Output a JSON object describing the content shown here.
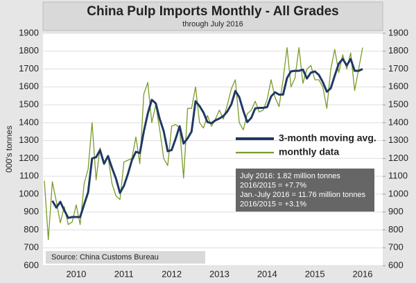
{
  "chart_data": {
    "type": "line",
    "title": "China Pulp Imports Monthly - All Grades",
    "subtitle": "through July 2016",
    "y_label": "000's tonnes",
    "source": "Source: China Customs Bureau",
    "annotation": [
      "July 2016: 1.82 million tonnes",
      "2016/2015 = +7.7%",
      "Jan.-July 2016 = 11.76 million tonnes",
      "2016/2015 = +3.1%"
    ],
    "categories": [
      null,
      null,
      null,
      null,
      null,
      null,
      null,
      null,
      "2010",
      null,
      null,
      null,
      null,
      null,
      null,
      null,
      null,
      null,
      null,
      null,
      "2011",
      null,
      null,
      null,
      null,
      null,
      null,
      null,
      null,
      null,
      null,
      null,
      "2012",
      null,
      null,
      null,
      null,
      null,
      null,
      null,
      null,
      null,
      null,
      null,
      "2013",
      null,
      null,
      null,
      null,
      null,
      null,
      null,
      null,
      null,
      null,
      null,
      "2014",
      null,
      null,
      null,
      null,
      null,
      null,
      null,
      null,
      null,
      null,
      null,
      "2015",
      null,
      null,
      null,
      null,
      null,
      null,
      null,
      null,
      null,
      null,
      null,
      "2016"
    ],
    "series": [
      {
        "name": "3-month moving avg.",
        "color": "#1f3864",
        "width": 3,
        "values": [
          null,
          null,
          963,
          925,
          957,
          910,
          867,
          872,
          872,
          872,
          943,
          1010,
          1200,
          1207,
          1247,
          1170,
          1213,
          1147,
          1087,
          1007,
          1047,
          1113,
          1190,
          1237,
          1230,
          1350,
          1452,
          1528,
          1508,
          1420,
          1353,
          1240,
          1247,
          1310,
          1380,
          1283,
          1313,
          1350,
          1520,
          1493,
          1457,
          1403,
          1397,
          1413,
          1423,
          1437,
          1463,
          1503,
          1577,
          1543,
          1467,
          1403,
          1427,
          1480,
          1483,
          1483,
          1487,
          1547,
          1570,
          1557,
          1557,
          1650,
          1687,
          1690,
          1690,
          1697,
          1647,
          1680,
          1687,
          1667,
          1627,
          1573,
          1593,
          1663,
          1730,
          1757,
          1720,
          1757,
          1690,
          1690,
          1700
        ]
      },
      {
        "name": "monthly data",
        "color": "#7a9a2a",
        "width": 1.3,
        "values": [
          1075,
          745,
          1070,
          960,
          840,
          930,
          830,
          845,
          940,
          830,
          1060,
          1140,
          1400,
          1080,
          1260,
          1170,
          1210,
          1060,
          990,
          970,
          1180,
          1190,
          1200,
          1320,
          1170,
          1560,
          1625,
          1400,
          1500,
          1360,
          1200,
          1160,
          1380,
          1390,
          1370,
          1090,
          1480,
          1480,
          1600,
          1400,
          1370,
          1440,
          1380,
          1420,
          1470,
          1420,
          1500,
          1590,
          1640,
          1400,
          1360,
          1450,
          1470,
          1520,
          1460,
          1470,
          1530,
          1640,
          1540,
          1490,
          1640,
          1820,
          1600,
          1650,
          1820,
          1620,
          1700,
          1720,
          1640,
          1640,
          1600,
          1480,
          1700,
          1810,
          1680,
          1780,
          1700,
          1790,
          1580,
          1700,
          1820
        ]
      }
    ],
    "ylim": [
      600,
      1900
    ],
    "yticks": [
      600,
      700,
      800,
      900,
      1000,
      1100,
      1200,
      1300,
      1400,
      1500,
      1600,
      1700,
      1800,
      1900
    ],
    "y2lim": [
      600,
      1900
    ],
    "y2ticks": [
      600,
      700,
      800,
      900,
      1000,
      1100,
      1200,
      1300,
      1400,
      1500,
      1600,
      1700,
      1800,
      1900
    ],
    "grid": true
  }
}
